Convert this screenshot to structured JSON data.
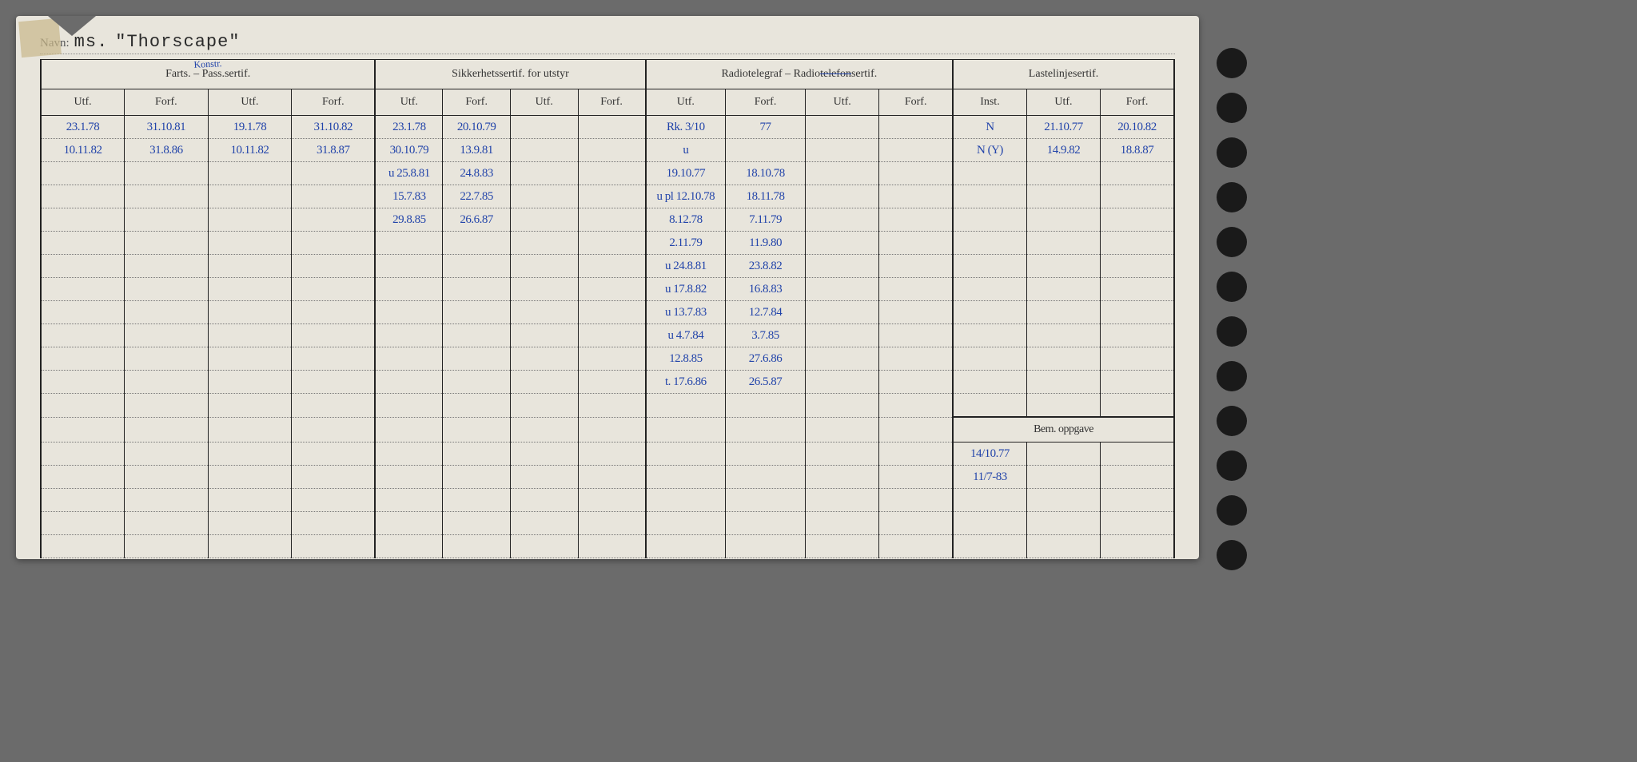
{
  "header": {
    "label": "Navn:",
    "prefix": "ms.",
    "ship": "\"Thorscape\""
  },
  "sections": {
    "farts": {
      "title": "Farts. – Pass.sertif.",
      "annotation": "Konstr.",
      "cols": [
        "Utf.",
        "Forf.",
        "Utf.",
        "Forf."
      ]
    },
    "sikkerhet": {
      "title": "Sikkerhetssertif. for utstyr",
      "cols": [
        "Utf.",
        "Forf.",
        "Utf.",
        "Forf."
      ]
    },
    "radio": {
      "title": "Radiotelegraf – Radiotelefonsertif.",
      "strike_part": "telefon",
      "cols": [
        "Utf.",
        "Forf.",
        "Utf.",
        "Forf."
      ]
    },
    "laste": {
      "title": "Lastelinjesertif.",
      "cols": [
        "Inst.",
        "Utf.",
        "Forf."
      ]
    }
  },
  "bem": {
    "title": "Bem. oppgave"
  },
  "rows": [
    {
      "c": [
        "23.1.78",
        "31.10.81",
        "19.1.78",
        "31.10.82",
        "23.1.78",
        "20.10.79",
        "",
        "",
        "Rk. 3/10",
        "77",
        "",
        "",
        "N",
        "21.10.77",
        "20.10.82"
      ]
    },
    {
      "c": [
        "10.11.82",
        "31.8.86",
        "10.11.82",
        "31.8.87",
        "30.10.79",
        "13.9.81",
        "",
        "",
        "u",
        "",
        "",
        "",
        "N (Y)",
        "14.9.82",
        "18.8.87"
      ]
    },
    {
      "c": [
        "",
        "",
        "",
        "",
        "u 25.8.81",
        "24.8.83",
        "",
        "",
        "19.10.77",
        "18.10.78",
        "",
        "",
        "",
        "",
        ""
      ]
    },
    {
      "c": [
        "",
        "",
        "",
        "",
        "15.7.83",
        "22.7.85",
        "",
        "",
        "u pl 12.10.78",
        "18.11.78",
        "",
        "",
        "",
        "",
        ""
      ]
    },
    {
      "c": [
        "",
        "",
        "",
        "",
        "29.8.85",
        "26.6.87",
        "",
        "",
        "8.12.78",
        "7.11.79",
        "",
        "",
        "",
        "",
        ""
      ]
    },
    {
      "c": [
        "",
        "",
        "",
        "",
        "",
        "",
        "",
        "",
        "2.11.79",
        "11.9.80",
        "",
        "",
        "",
        "",
        ""
      ]
    },
    {
      "c": [
        "",
        "",
        "",
        "",
        "",
        "",
        "",
        "",
        "u 24.8.81",
        "23.8.82",
        "",
        "",
        "",
        "",
        ""
      ]
    },
    {
      "c": [
        "",
        "",
        "",
        "",
        "",
        "",
        "",
        "",
        "u 17.8.82",
        "16.8.83",
        "",
        "",
        "",
        "",
        ""
      ]
    },
    {
      "c": [
        "",
        "",
        "",
        "",
        "",
        "",
        "",
        "",
        "u 13.7.83",
        "12.7.84",
        "",
        "",
        "",
        "",
        ""
      ]
    },
    {
      "c": [
        "",
        "",
        "",
        "",
        "",
        "",
        "",
        "",
        "u 4.7.84",
        "3.7.85",
        "",
        "",
        "",
        "",
        ""
      ]
    },
    {
      "c": [
        "",
        "",
        "",
        "",
        "",
        "",
        "",
        "",
        "12.8.85",
        "27.6.86",
        "",
        "",
        "",
        "",
        ""
      ]
    },
    {
      "c": [
        "",
        "",
        "",
        "",
        "",
        "",
        "",
        "",
        "t. 17.6.86",
        "26.5.87",
        "",
        "",
        "",
        "",
        ""
      ]
    },
    {
      "c": [
        "",
        "",
        "",
        "",
        "",
        "",
        "",
        "",
        "",
        "",
        "",
        "",
        "",
        "",
        ""
      ]
    }
  ],
  "bem_rows": [
    {
      "c": [
        "",
        "",
        "",
        "",
        "",
        "",
        "",
        "",
        "",
        "",
        "",
        "",
        "14/10.77",
        "",
        ""
      ]
    },
    {
      "c": [
        "",
        "",
        "",
        "",
        "",
        "",
        "",
        "",
        "",
        "",
        "",
        "",
        "11/7-83",
        "",
        ""
      ]
    },
    {
      "c": [
        "",
        "",
        "",
        "",
        "",
        "",
        "",
        "",
        "",
        "",
        "",
        "",
        "",
        "",
        ""
      ]
    },
    {
      "c": [
        "",
        "",
        "",
        "",
        "",
        "",
        "",
        "",
        "",
        "",
        "",
        "",
        "",
        "",
        ""
      ]
    },
    {
      "c": [
        "",
        "",
        "",
        "",
        "",
        "",
        "",
        "",
        "",
        "",
        "",
        "",
        "",
        "",
        ""
      ]
    }
  ],
  "colors": {
    "paper": "#e8e5dc",
    "ink_print": "#333333",
    "ink_pen": "#2244aa",
    "border": "#222222"
  }
}
